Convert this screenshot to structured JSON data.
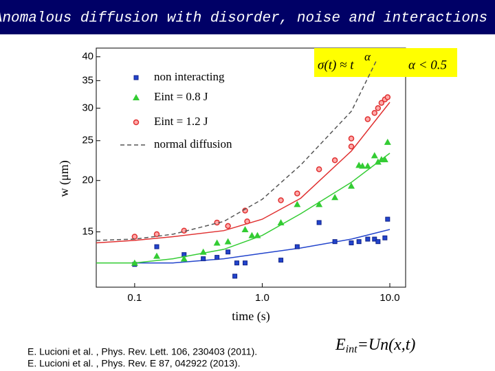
{
  "title": "Anomalous diffusion with disorder, noise and interactions",
  "chart_data": {
    "type": "scatter",
    "x_label": "time (s)",
    "y_label": "w (μm)",
    "xlim": [
      0.05,
      13.3
    ],
    "ylim": [
      11,
      42
    ],
    "xscale": "log",
    "yscale": "log",
    "xticks": [
      0.1,
      {
        "value": 1,
        "label": "1.0"
      },
      {
        "value": 10,
        "label": "10.0"
      }
    ],
    "yticks": [
      15,
      20,
      25,
      30,
      35,
      40
    ],
    "annotations": [
      "σ(t) ≈ t",
      "α",
      "α < 0.5"
    ],
    "series": [
      {
        "name": "non interacting",
        "color": "#2244cc",
        "marker": "square",
        "x": [
          0.1,
          0.149,
          0.244,
          0.345,
          0.442,
          0.539,
          0.632,
          0.734,
          0.61,
          1.4,
          1.88,
          2.79,
          3.71,
          4.99,
          5.73,
          6.71,
          7.59,
          8.08,
          9.15,
          9.61
        ],
        "values": [
          12.5,
          13.8,
          13.2,
          12.9,
          13.0,
          13.4,
          12.6,
          12.6,
          11.7,
          12.8,
          13.8,
          15.8,
          14.2,
          14.1,
          14.2,
          14.4,
          14.4,
          14.2,
          14.5,
          16.1
        ],
        "fit_x": [
          0.05,
          0.1,
          0.2,
          0.5,
          1,
          2,
          5,
          10
        ],
        "fit_values": [
          12.6,
          12.6,
          12.6,
          12.9,
          13.3,
          13.7,
          14.4,
          15.2
        ]
      },
      {
        "name": "Eint = 0.8 J",
        "color": "#33cc33",
        "marker": "triangle",
        "x": [
          0.1,
          0.149,
          0.244,
          0.345,
          0.442,
          0.539,
          0.734,
          0.83,
          0.917,
          1.4,
          1.88,
          2.79,
          3.71,
          4.99,
          5.73,
          6.1,
          6.71,
          7.59,
          8.08,
          8.6,
          9.15,
          9.61
        ],
        "values": [
          12.6,
          13.1,
          12.9,
          13.4,
          14.1,
          14.2,
          15.2,
          14.7,
          14.7,
          15.8,
          17.5,
          17.5,
          18.2,
          19.4,
          21.8,
          21.7,
          21.7,
          23.0,
          22.2,
          22.5,
          22.5,
          24.8
        ],
        "fit_x": [
          0.05,
          0.1,
          0.2,
          0.5,
          1,
          2,
          5,
          10
        ],
        "fit_values": [
          12.6,
          12.6,
          12.9,
          13.6,
          14.7,
          16.6,
          19.8,
          23.3
        ]
      },
      {
        "name": "Eint = 1.2 J",
        "color": "#e03030",
        "marker": "circle",
        "x": [
          0.1,
          0.149,
          0.244,
          0.442,
          0.539,
          0.734,
          0.762,
          1.4,
          1.88,
          2.79,
          3.71,
          4.99,
          4.99,
          6.71,
          7.59,
          8.08,
          8.6,
          9.15,
          9.61
        ],
        "values": [
          14.6,
          14.8,
          15.1,
          15.8,
          15.5,
          16.9,
          15.9,
          17.9,
          18.6,
          21.3,
          22.4,
          24.2,
          25.3,
          28.2,
          29.2,
          30.0,
          30.9,
          31.5,
          31.9
        ],
        "fit_x": [
          0.05,
          0.1,
          0.2,
          0.5,
          1,
          2,
          5,
          10
        ],
        "fit_values": [
          14.1,
          14.3,
          14.6,
          15.1,
          16.1,
          18.1,
          23.6,
          31.0
        ]
      },
      {
        "name": "normal diffusion",
        "color": "#555555",
        "style": "dashed",
        "x": [
          0.05,
          0.1,
          0.2,
          0.5,
          1,
          2,
          5,
          7.8
        ],
        "values": [
          14.3,
          14.4,
          14.8,
          15.9,
          18.0,
          21.8,
          29.5,
          39.0
        ]
      }
    ]
  },
  "references": [
    "E. Lucioni et al. , Phys. Rev. Lett. 106, 230403 (2011).",
    "E. Lucioni et al. , Phys. Rev. E 87, 042922 (2013)."
  ],
  "equation": {
    "base": "E",
    "sub": "int",
    "rest": "=Un(x,t)"
  }
}
